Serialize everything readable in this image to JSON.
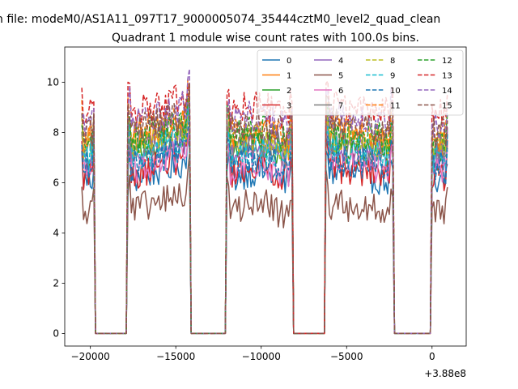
{
  "chart_data": {
    "type": "line",
    "suptitle": "n file: modeM0/AS1A11_097T17_9000005074_35444cztM0_level2_quad_clean",
    "title": "Quadrant 1 module wise count rates with 100.0s bins.",
    "xlabel": "",
    "ylabel": "",
    "x_offset_label": "+3.88e8",
    "xlim": [
      -21500,
      2000
    ],
    "ylim": [
      -0.5,
      11.4
    ],
    "xticks": [
      -20000,
      -15000,
      -10000,
      -5000,
      0
    ],
    "xtick_labels": [
      "−20000",
      "−15000",
      "−10000",
      "−5000",
      "0"
    ],
    "yticks": [
      0,
      2,
      4,
      6,
      8,
      10
    ],
    "ytick_labels": [
      "0",
      "2",
      "4",
      "6",
      "8",
      "10"
    ],
    "legend_position": "top-right",
    "segments": [
      [
        -20500,
        -19800
      ],
      [
        -17800,
        -14200
      ],
      [
        -12000,
        -8200
      ],
      [
        -6200,
        -2300
      ],
      [
        -50,
        900
      ]
    ],
    "series": [
      {
        "name": "0",
        "color": "#1f77b4",
        "style": "solid",
        "level": 6.1
      },
      {
        "name": "1",
        "color": "#ff7f0e",
        "style": "solid",
        "level": 7.6
      },
      {
        "name": "2",
        "color": "#2ca02c",
        "style": "solid",
        "level": 7.1
      },
      {
        "name": "3",
        "color": "#d62728",
        "style": "solid",
        "level": 6.3
      },
      {
        "name": "4",
        "color": "#9467bd",
        "style": "solid",
        "level": 7.0
      },
      {
        "name": "5",
        "color": "#8c564b",
        "style": "solid",
        "level": 4.8
      },
      {
        "name": "6",
        "color": "#e377c2",
        "style": "solid",
        "level": 6.5
      },
      {
        "name": "7",
        "color": "#7f7f7f",
        "style": "solid",
        "level": 7.3
      },
      {
        "name": "8",
        "color": "#bcbd22",
        "style": "dashed",
        "level": 7.4
      },
      {
        "name": "9",
        "color": "#17becf",
        "style": "dashed",
        "level": 7.0
      },
      {
        "name": "10",
        "color": "#1f77b4",
        "style": "dashed",
        "level": 6.6
      },
      {
        "name": "11",
        "color": "#ff7f0e",
        "style": "dashed",
        "level": 7.9
      },
      {
        "name": "12",
        "color": "#2ca02c",
        "style": "dashed",
        "level": 7.7
      },
      {
        "name": "13",
        "color": "#d62728",
        "style": "dashed",
        "level": 8.7
      },
      {
        "name": "14",
        "color": "#9467bd",
        "style": "dashed",
        "level": 8.3
      },
      {
        "name": "15",
        "color": "#8c564b",
        "style": "dashed",
        "level": 8.0
      }
    ]
  }
}
